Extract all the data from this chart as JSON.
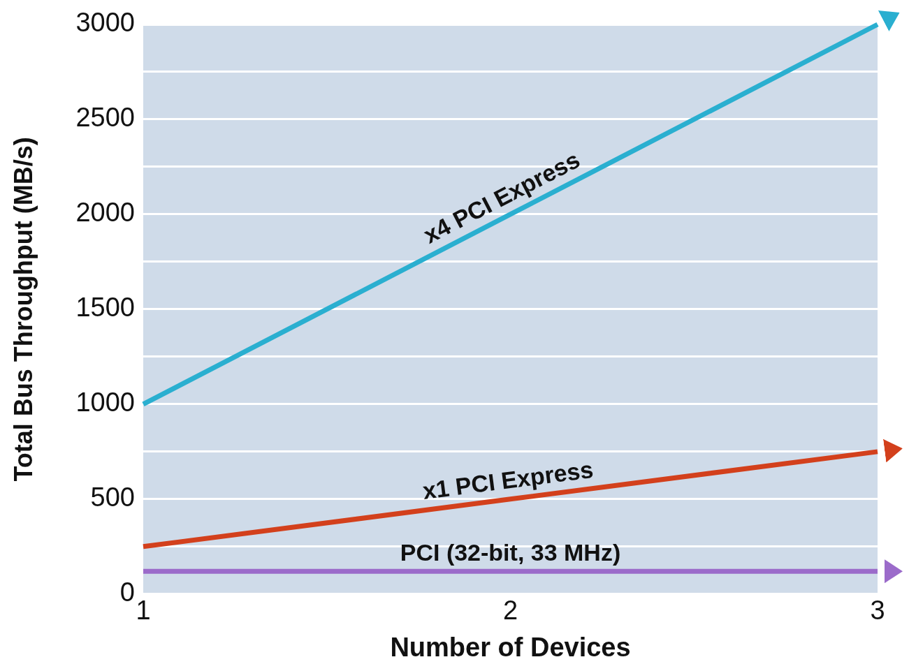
{
  "chart_data": {
    "type": "line",
    "xlabel": "Number of Devices",
    "ylabel": "Total Bus Throughput (MB/s)",
    "x": [
      1,
      2,
      3
    ],
    "series": [
      {
        "name": "x4 PCI Express",
        "color": "#2aafd0",
        "values": [
          1000,
          2000,
          3000
        ]
      },
      {
        "name": "x1 PCI Express",
        "color": "#d3401c",
        "values": [
          250,
          500,
          750
        ]
      },
      {
        "name": "PCI (32-bit, 33 MHz)",
        "color": "#9b6bca",
        "values": [
          120,
          120,
          120
        ]
      }
    ],
    "xlim": [
      1,
      3
    ],
    "xticks": [
      1,
      2,
      3
    ],
    "ylim": [
      0,
      3000
    ],
    "yticks": [
      0,
      {
        "value": 250,
        "label": null
      },
      500,
      {
        "value": 750,
        "label": null
      },
      1000,
      {
        "value": 1250,
        "label": null
      },
      1500,
      {
        "value": 1750,
        "label": null
      },
      2000,
      {
        "value": 2250,
        "label": null
      },
      2500,
      {
        "value": 2750,
        "label": null
      },
      3000
    ],
    "grid": "y",
    "legend": false,
    "marker": "none",
    "line_style": "solid"
  }
}
